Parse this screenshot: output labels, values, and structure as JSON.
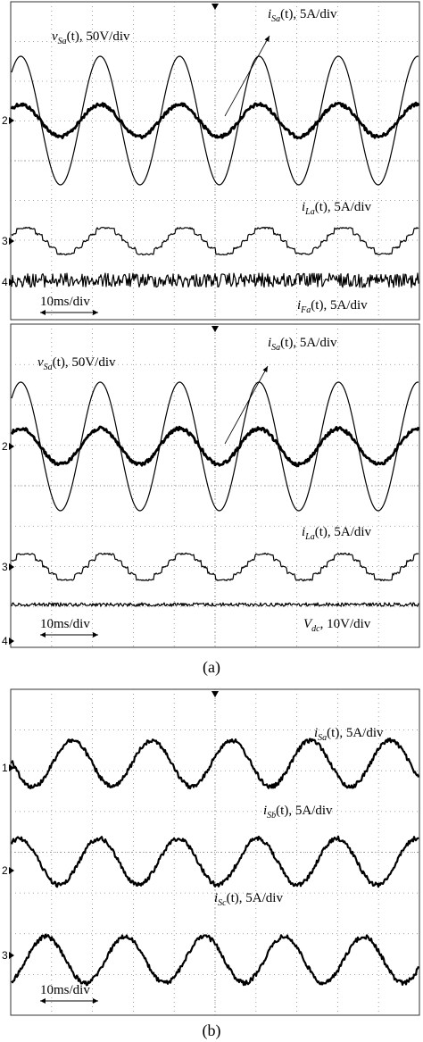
{
  "panel_a": {
    "top": {
      "labels": [
        {
          "symbol": "v",
          "subscript": "Sa",
          "text": "(t), 50V/div"
        },
        {
          "symbol": "i",
          "subscript": "Sa",
          "text": "(t), 5A/div"
        },
        {
          "symbol": "i",
          "subscript": "La",
          "text": "(t), 5A/div"
        },
        {
          "symbol": "i",
          "subscript": "Fa",
          "text": "(t), 5A/div"
        }
      ],
      "channels": [
        "2",
        "3",
        "4"
      ],
      "scale": "10ms/div"
    },
    "bottom": {
      "labels": [
        {
          "symbol": "i",
          "subscript": "Sa",
          "text": "(t), 5A/div"
        },
        {
          "symbol": "v",
          "subscript": "Sa",
          "text": "(t), 50V/div"
        },
        {
          "symbol": "i",
          "subscript": "La",
          "text": "(t), 5A/div"
        },
        {
          "symbol": "V",
          "subscript": "dc",
          "text": ", 10V/div"
        }
      ],
      "channels": [
        "2",
        "3",
        "4"
      ],
      "scale": "10ms/div"
    },
    "caption": "(a)"
  },
  "panel_b": {
    "labels": [
      {
        "symbol": "i",
        "subscript": "Sa",
        "text": "(t), 5A/div"
      },
      {
        "symbol": "i",
        "subscript": "Sb",
        "text": "(t), 5A/div"
      },
      {
        "symbol": "i",
        "subscript": "Sc",
        "text": "(t), 5A/div"
      }
    ],
    "channels": [
      "1",
      "2",
      "3"
    ],
    "scale": "10ms/div",
    "caption": "(b)"
  }
}
